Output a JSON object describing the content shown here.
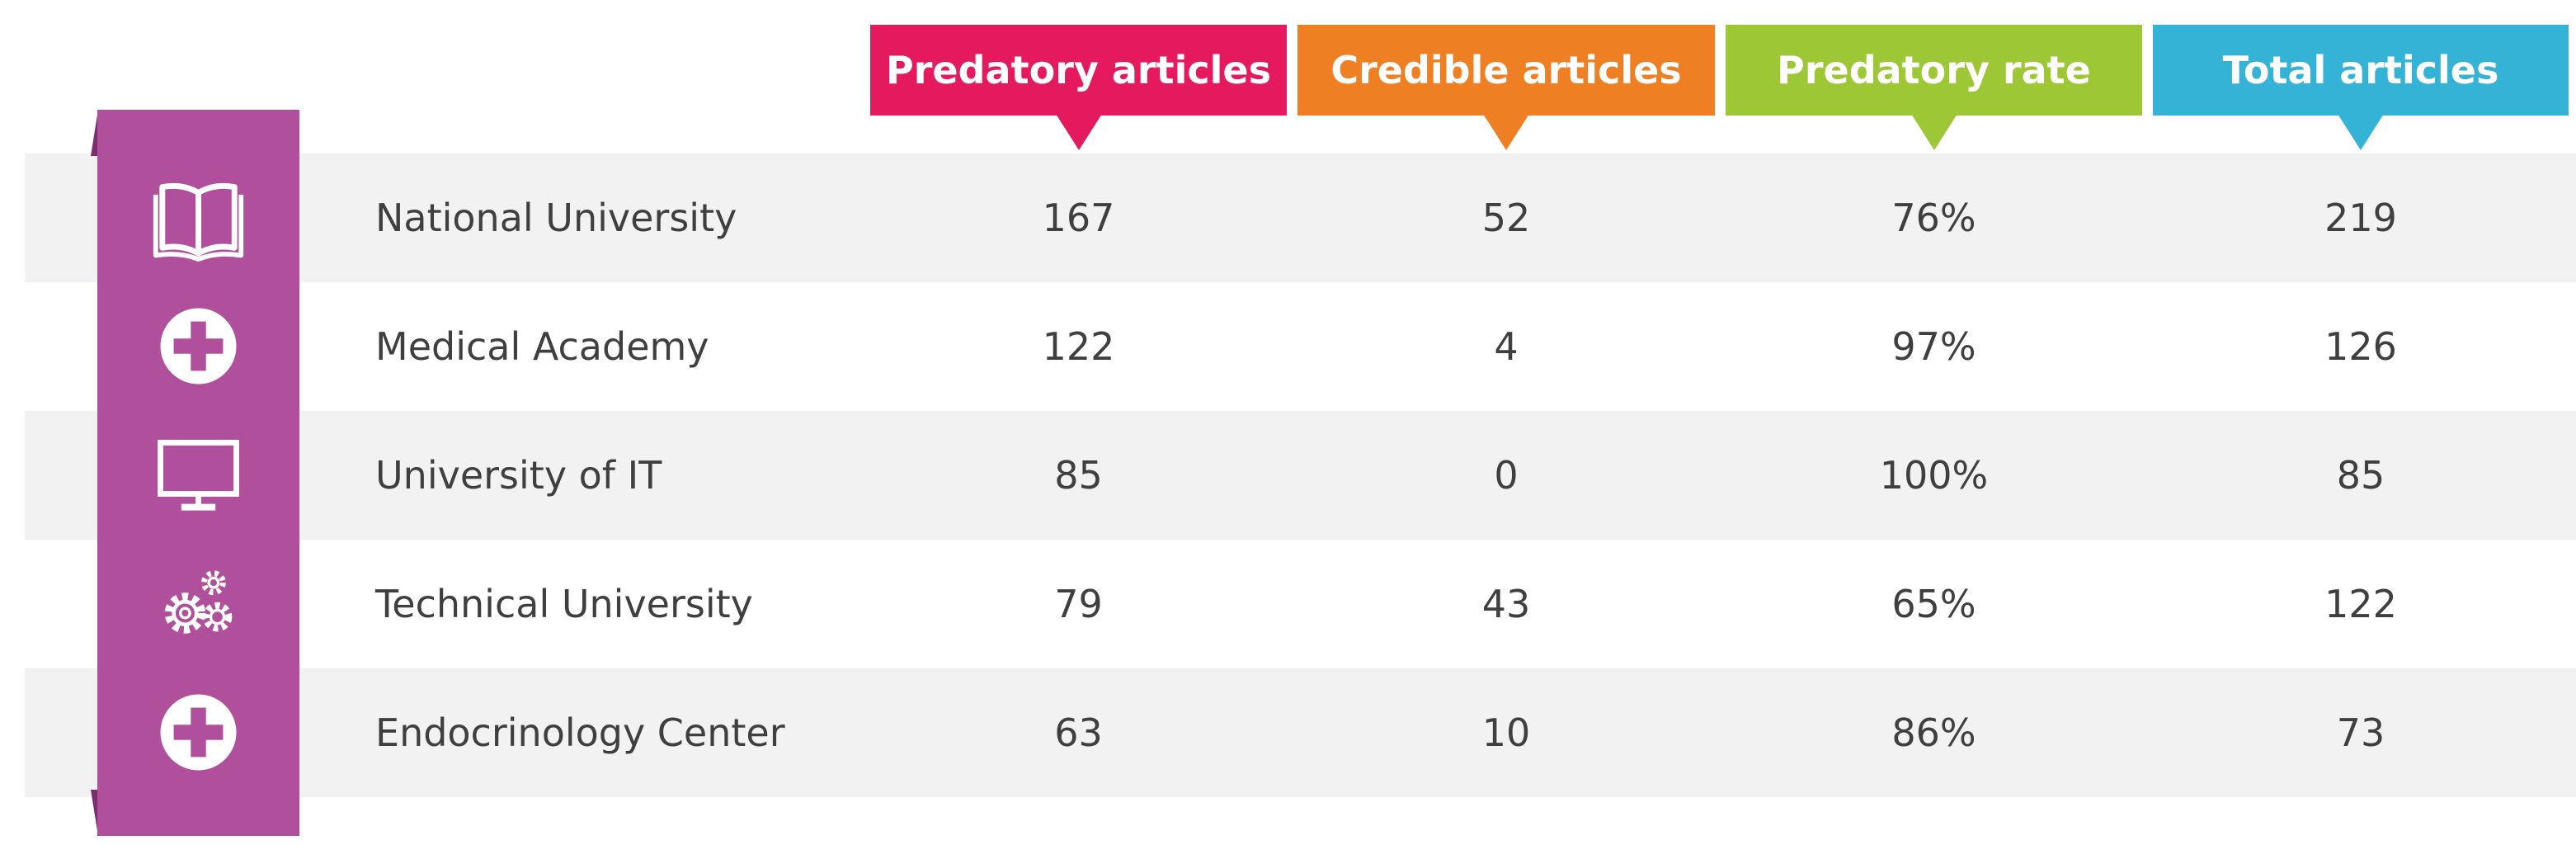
{
  "chart_data": {
    "type": "table",
    "columns": [
      {
        "label": "Predatory articles",
        "color": "#e5195e"
      },
      {
        "label": "Credible articles",
        "color": "#ee7f22"
      },
      {
        "label": "Predatory rate",
        "color": "#9dc734"
      },
      {
        "label": "Total articles",
        "color": "#35b3d7"
      }
    ],
    "rows": [
      {
        "name": "National University",
        "icon": "open-book-icon",
        "values": [
          "167",
          "52",
          "76%",
          "219"
        ]
      },
      {
        "name": "Medical Academy",
        "icon": "medical-cross-icon",
        "values": [
          "122",
          "4",
          "97%",
          "126"
        ]
      },
      {
        "name": "University of IT",
        "icon": "computer-monitor-icon",
        "values": [
          "85",
          "0",
          "100%",
          "85"
        ]
      },
      {
        "name": "Technical University",
        "icon": "gears-icon",
        "values": [
          "79",
          "43",
          "65%",
          "122"
        ]
      },
      {
        "name": "Endocrinology Center",
        "icon": "medical-cross-icon",
        "values": [
          "63",
          "10",
          "86%",
          "73"
        ]
      }
    ]
  },
  "colors": {
    "icon_column": "#b04f9c",
    "icon_column_fold": "#7a2d70",
    "row_band": "#f2f2f2",
    "text": "#3f3f3f"
  }
}
